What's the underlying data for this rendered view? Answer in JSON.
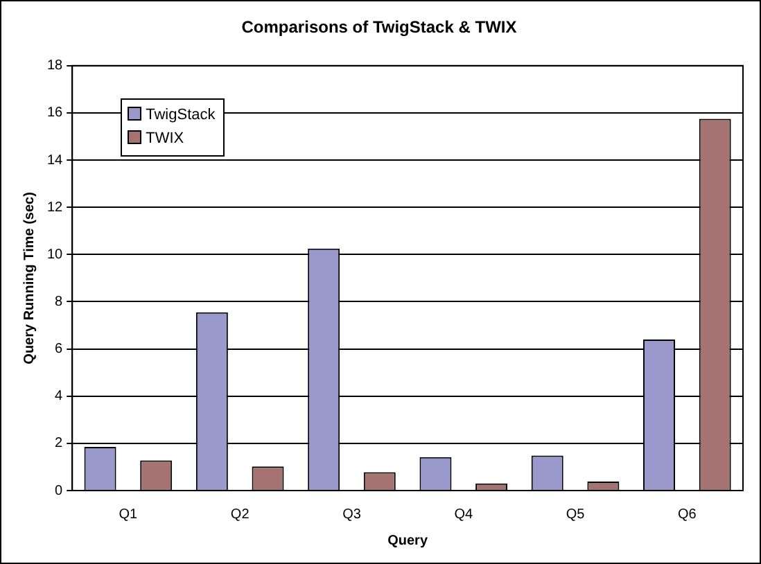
{
  "chart_data": {
    "type": "bar",
    "title": "Comparisons of TwigStack & TWIX",
    "xlabel": "Query",
    "ylabel": "Query Running Time (sec)",
    "categories": [
      "Q1",
      "Q2",
      "Q3",
      "Q4",
      "Q5",
      "Q6"
    ],
    "series": [
      {
        "name": "TwigStack",
        "color": "#9999cc",
        "values": [
          1.85,
          7.55,
          10.25,
          1.42,
          1.48,
          6.4
        ]
      },
      {
        "name": "TWIX",
        "color": "#a67373",
        "values": [
          1.28,
          1.02,
          0.78,
          0.3,
          0.38,
          15.75
        ]
      }
    ],
    "ylim": [
      0,
      18
    ],
    "yticks": [
      0,
      2,
      4,
      6,
      8,
      10,
      12,
      14,
      16,
      18
    ],
    "grid": "y",
    "legend": "top left"
  }
}
